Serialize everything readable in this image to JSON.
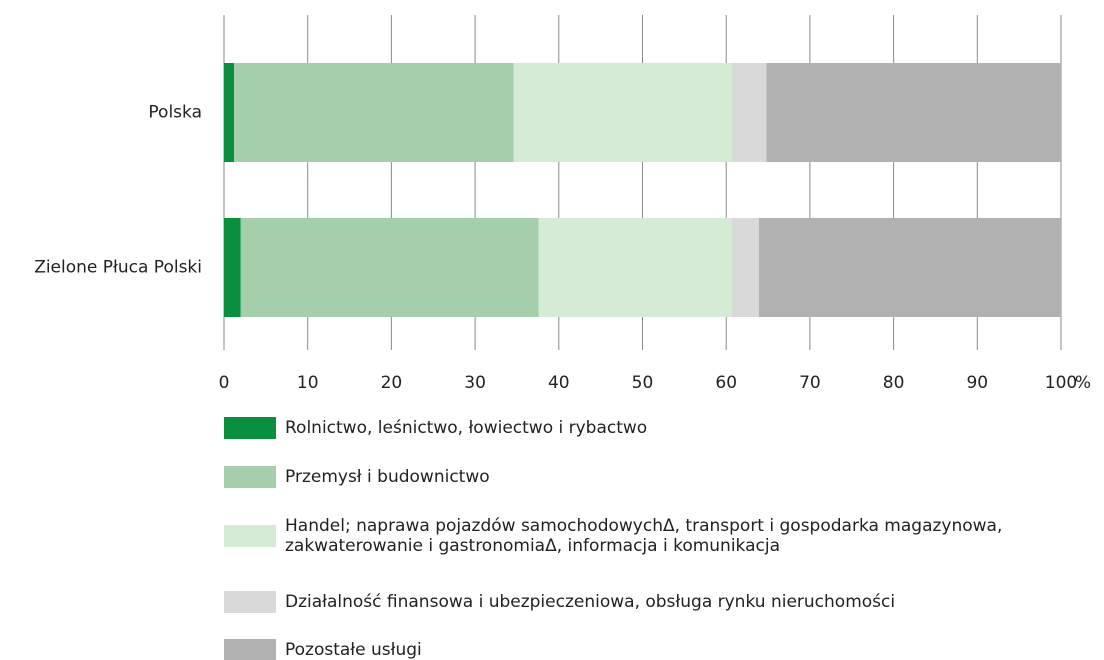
{
  "chart_data": {
    "type": "stacked-barh",
    "categories": [
      "Polska",
      "Zielone Płuca Polski"
    ],
    "series": [
      {
        "name": "Rolnictwo, leśnictwo, łowiectwo i rybactwo",
        "color": "#0a8f3e",
        "values": [
          1.2,
          2.0
        ]
      },
      {
        "name": "Przemysł i budownictwo",
        "color": "#a5cfab",
        "values": [
          33.4,
          35.6
        ]
      },
      {
        "name": "Handel; naprawa pojazdów samochodowychΔ, transport i gospodarka magazynowa, zakwaterowanie i gastronomiaΔ, informacja i komunikacja",
        "color": "#d6ebd6",
        "values": [
          26.1,
          23.1
        ]
      },
      {
        "name": "Działalność finansowa i ubezpieczeniowa, obsługa rynku nieruchomości",
        "color": "#d9d9d9",
        "values": [
          4.1,
          3.2
        ]
      },
      {
        "name": "Pozostałe usługi",
        "color": "#b1b1b1",
        "values": [
          35.2,
          36.1
        ]
      }
    ],
    "xlim": [
      0,
      100
    ],
    "xticks": [
      0,
      10,
      20,
      30,
      40,
      50,
      60,
      70,
      80,
      90,
      100
    ],
    "x_unit": "%",
    "grid": true
  }
}
